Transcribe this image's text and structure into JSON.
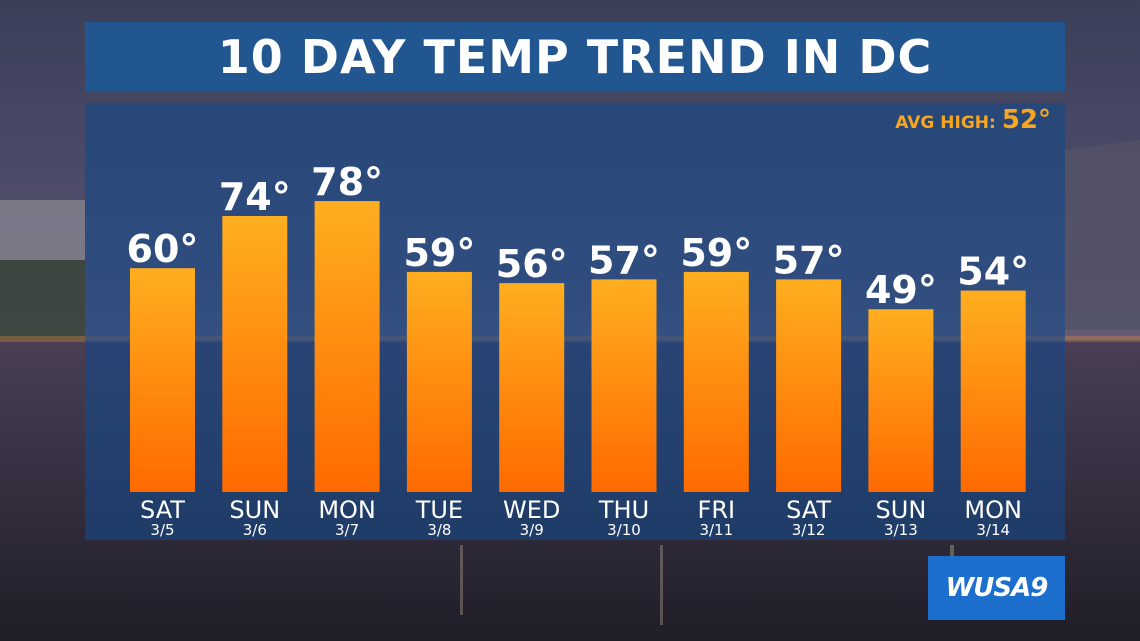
{
  "title": "10 DAY TEMP TREND IN DC",
  "avg_high": {
    "label": "AVG HIGH:",
    "value": "52°"
  },
  "logo": {
    "text": "WUSA9"
  },
  "chart_data": {
    "type": "bar",
    "title": "10 DAY TEMP TREND IN DC",
    "categories": [
      "SAT",
      "SUN",
      "MON",
      "TUE",
      "WED",
      "THU",
      "FRI",
      "SAT",
      "SUN",
      "MON"
    ],
    "dates": [
      "3/5",
      "3/6",
      "3/7",
      "3/8",
      "3/9",
      "3/10",
      "3/11",
      "3/12",
      "3/13",
      "3/14"
    ],
    "values": [
      60,
      74,
      78,
      59,
      56,
      57,
      59,
      57,
      49,
      54
    ],
    "value_labels": [
      "60°",
      "74°",
      "78°",
      "59°",
      "56°",
      "57°",
      "59°",
      "57°",
      "49°",
      "54°"
    ],
    "ylim": [
      0,
      90
    ],
    "bar_color": "#ff8c00",
    "grid": false,
    "legend": "none"
  },
  "colors": {
    "title_bg": "#205896",
    "panel_bg": "#164887",
    "accent": "#f6a623",
    "bar_top": "#ffae20",
    "bar_bottom": "#ff6a00",
    "logo_bg": "#1d6fce"
  }
}
